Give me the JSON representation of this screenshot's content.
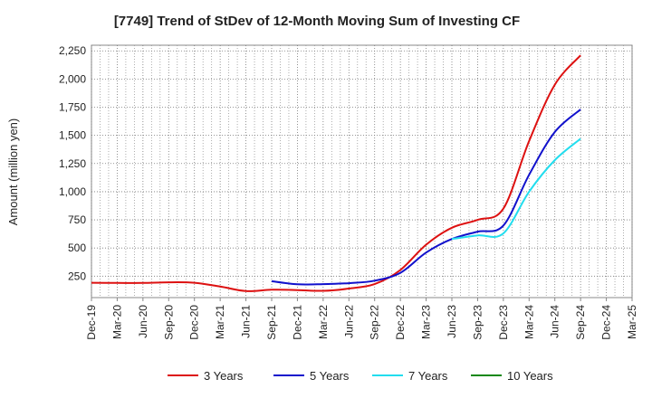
{
  "chart_data": {
    "type": "line",
    "title": "[7749]  Trend of StDev of 12-Month Moving Sum of Investing CF",
    "ylabel": "Amount (million yen)",
    "xlabel": "",
    "ylim": [
      60,
      2300
    ],
    "yticks": [
      250,
      500,
      750,
      1000,
      1250,
      1500,
      1750,
      2000,
      2250
    ],
    "ytick_labels": [
      "250",
      "500",
      "750",
      "1,000",
      "1,250",
      "1,500",
      "1,750",
      "2,000",
      "2,250"
    ],
    "x_categories": [
      "Dec-19",
      "Mar-20",
      "Jun-20",
      "Sep-20",
      "Dec-20",
      "Mar-21",
      "Jun-21",
      "Sep-21",
      "Dec-21",
      "Mar-22",
      "Jun-22",
      "Sep-22",
      "Dec-22",
      "Mar-23",
      "Jun-23",
      "Sep-23",
      "Dec-23",
      "Mar-24",
      "Jun-24",
      "Sep-24",
      "Dec-24",
      "Mar-25"
    ],
    "grid": true,
    "legend_position": "bottom",
    "series": [
      {
        "name": "3 Years",
        "color": "#dd1111",
        "values": [
          [
            "Dec-19",
            192
          ],
          [
            "Mar-20",
            190
          ],
          [
            "Jun-20",
            190
          ],
          [
            "Sep-20",
            196
          ],
          [
            "Dec-20",
            192
          ],
          [
            "Mar-21",
            158
          ],
          [
            "Jun-21",
            118
          ],
          [
            "Sep-21",
            130
          ],
          [
            "Dec-21",
            127
          ],
          [
            "Mar-22",
            120
          ],
          [
            "Jun-22",
            140
          ],
          [
            "Sep-22",
            180
          ],
          [
            "Dec-22",
            305
          ],
          [
            "Mar-23",
            530
          ],
          [
            "Jun-23",
            680
          ],
          [
            "Sep-23",
            750
          ],
          [
            "Dec-23",
            850
          ],
          [
            "Mar-24",
            1450
          ],
          [
            "Jun-24",
            1950
          ],
          [
            "Sep-24",
            2210
          ]
        ]
      },
      {
        "name": "5 Years",
        "color": "#1111cc",
        "values": [
          [
            "Sep-21",
            205
          ],
          [
            "Dec-21",
            178
          ],
          [
            "Mar-22",
            180
          ],
          [
            "Jun-22",
            188
          ],
          [
            "Sep-22",
            210
          ],
          [
            "Dec-22",
            280
          ],
          [
            "Mar-23",
            460
          ],
          [
            "Jun-23",
            580
          ],
          [
            "Sep-23",
            645
          ],
          [
            "Dec-23",
            700
          ],
          [
            "Mar-24",
            1150
          ],
          [
            "Jun-24",
            1530
          ],
          [
            "Sep-24",
            1730
          ]
        ]
      },
      {
        "name": "7 Years",
        "color": "#22ddee",
        "values": [
          [
            "Jun-23",
            580
          ],
          [
            "Sep-23",
            612
          ],
          [
            "Dec-23",
            630
          ],
          [
            "Mar-24",
            1000
          ],
          [
            "Jun-24",
            1280
          ],
          [
            "Sep-24",
            1470
          ]
        ]
      },
      {
        "name": "10 Years",
        "color": "#118811",
        "values": []
      }
    ]
  }
}
